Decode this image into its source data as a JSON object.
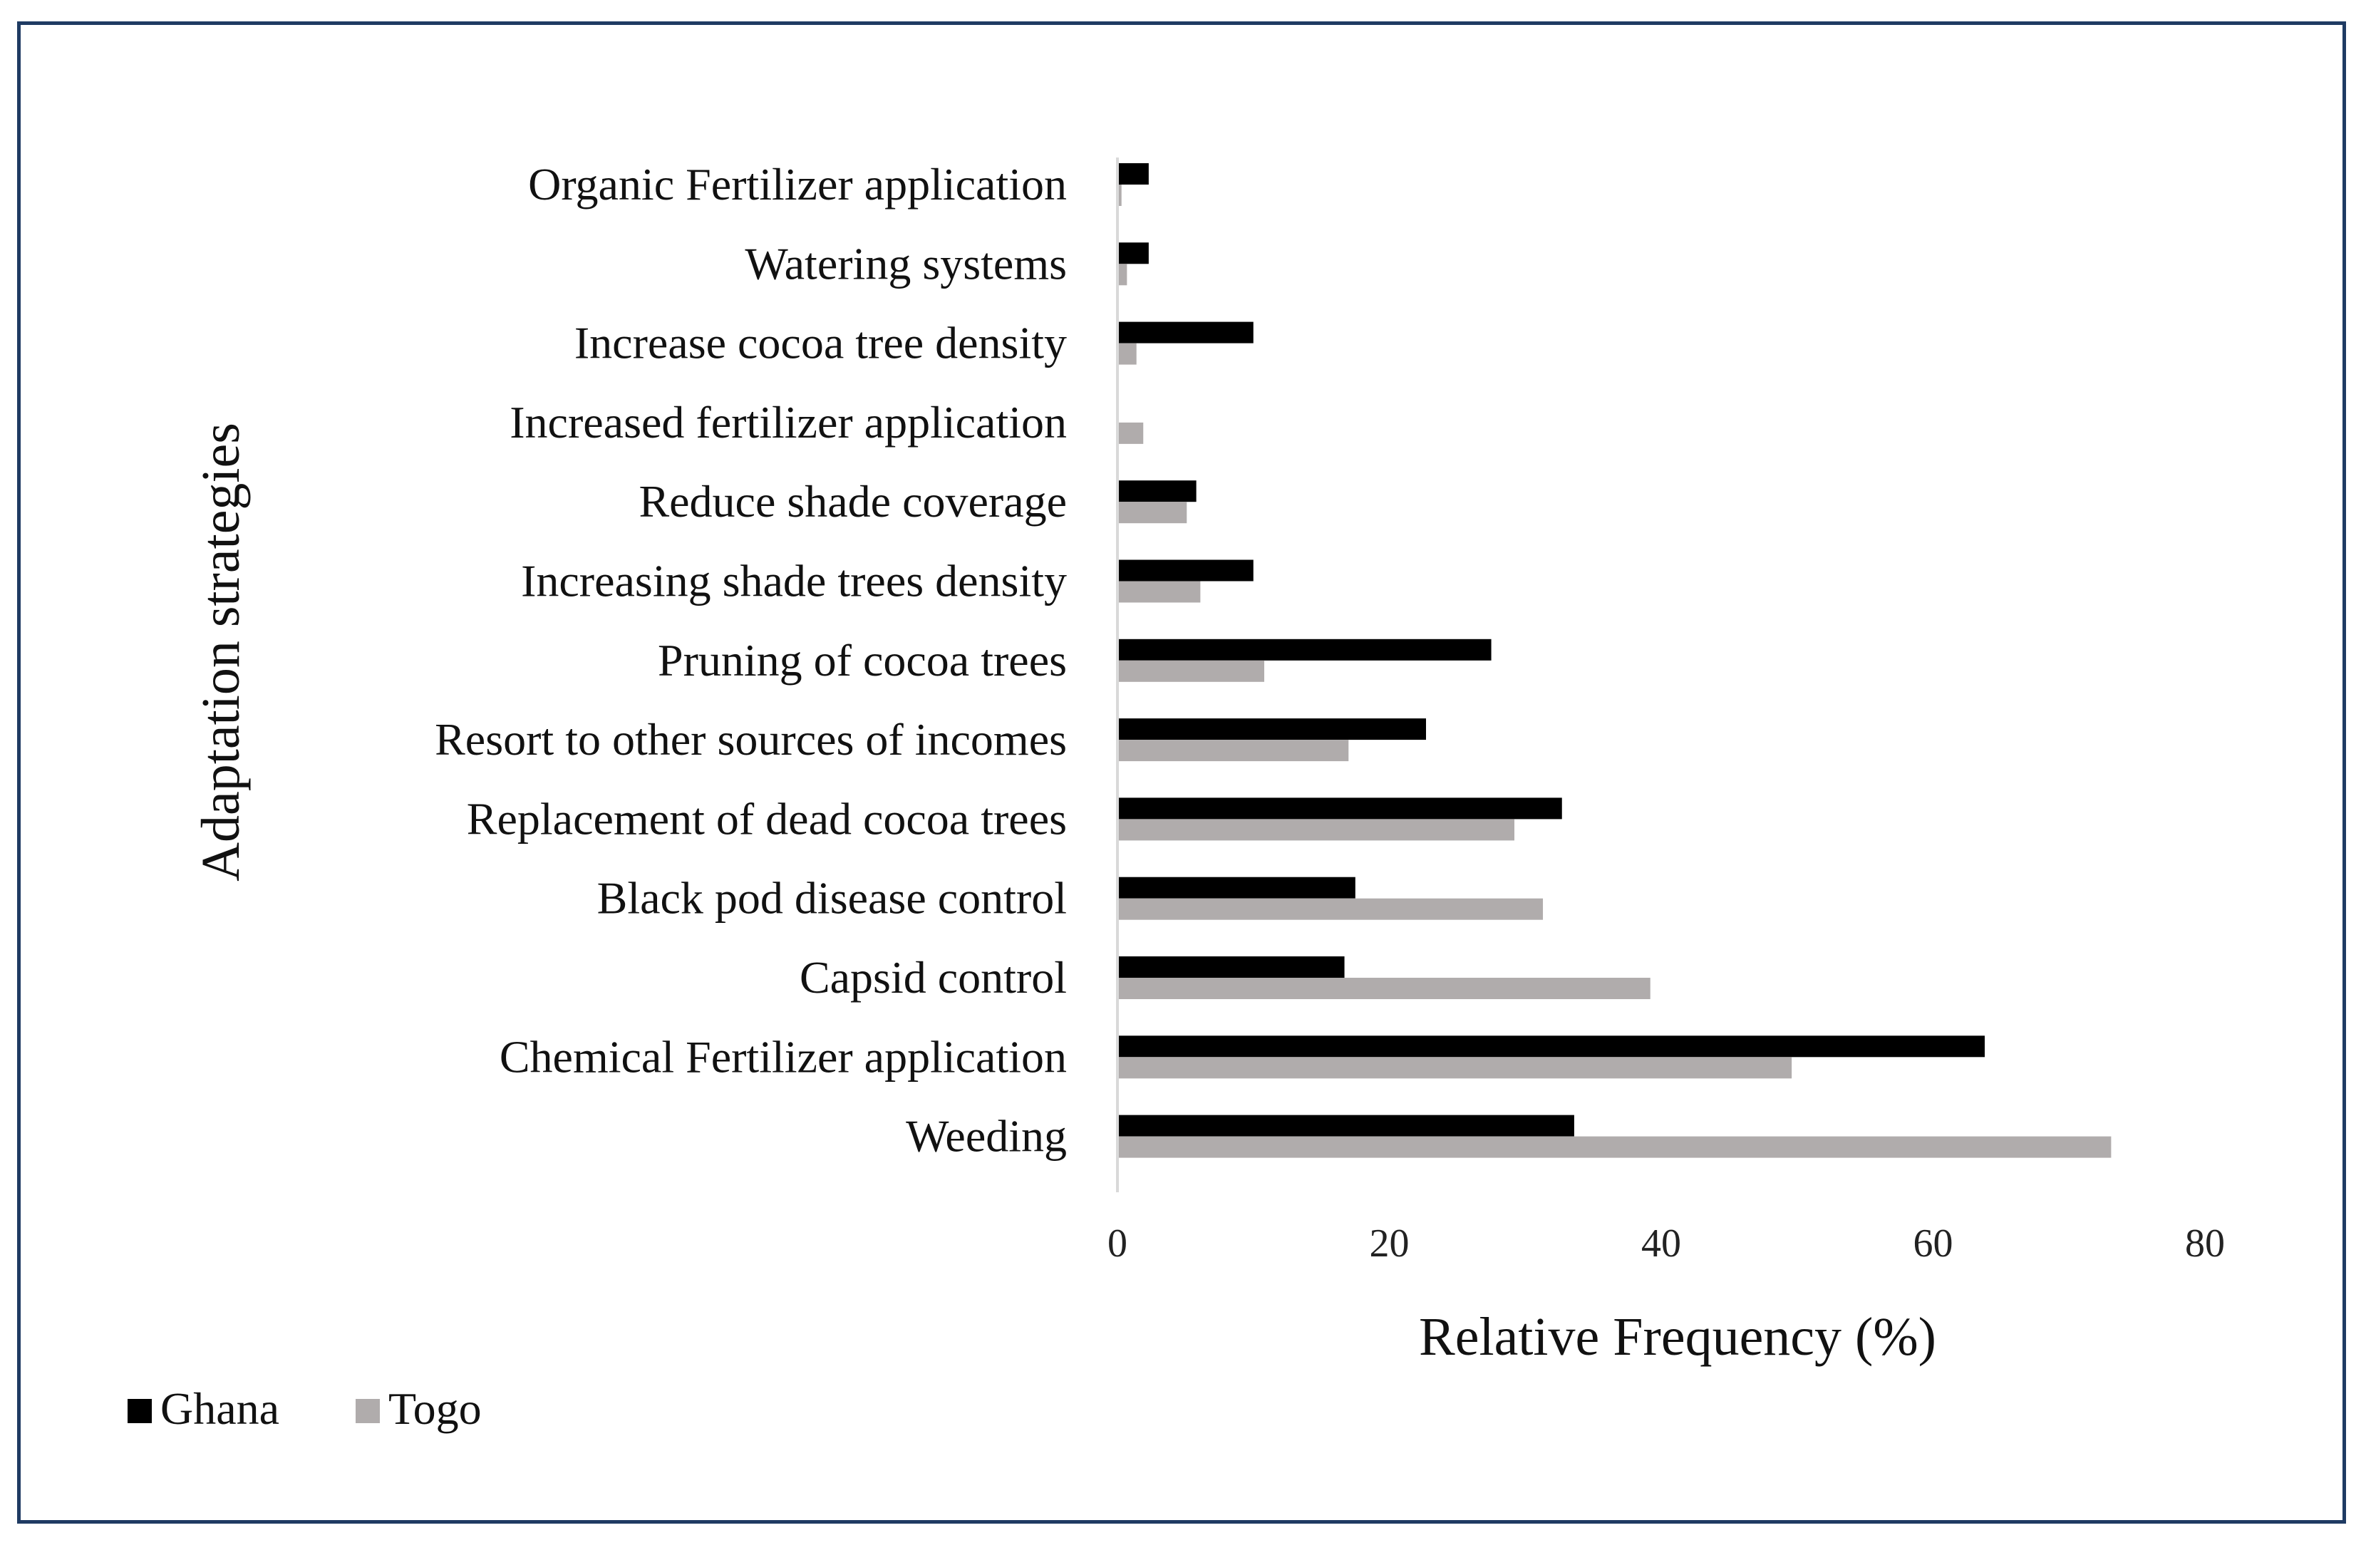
{
  "chart_data": {
    "type": "bar",
    "orientation": "horizontal",
    "title": "",
    "xlabel": "Relative Frequency (%)",
    "ylabel": "Adaptation strategies",
    "xlim": [
      0,
      80
    ],
    "x_ticks": [
      "0",
      "20",
      "40",
      "60",
      "80"
    ],
    "categories": [
      "Organic Fertilizer application",
      "Watering systems",
      "Increase cocoa tree density",
      "Increased fertilizer application",
      "Reduce shade coverage",
      "Increasing shade trees density",
      "Pruning of cocoa trees",
      "Resort to other sources of incomes",
      "Replacement of dead cocoa trees",
      "Black pod disease control",
      "Capsid control",
      "Chemical Fertilizer application",
      "Weeding"
    ],
    "series": [
      {
        "name": "Ghana",
        "color": "#000000",
        "values": [
          2.3,
          2.3,
          10,
          0,
          5.8,
          10,
          27.5,
          22.7,
          32.7,
          17.5,
          16.7,
          63.8,
          33.6
        ]
      },
      {
        "name": "Togo",
        "color": "#b0acac",
        "values": [
          0.3,
          0.7,
          1.4,
          1.9,
          5.1,
          6.1,
          10.8,
          17,
          29.2,
          31.3,
          39.2,
          49.6,
          73.1
        ]
      }
    ],
    "legend_position": "bottom-left",
    "grid": false
  }
}
